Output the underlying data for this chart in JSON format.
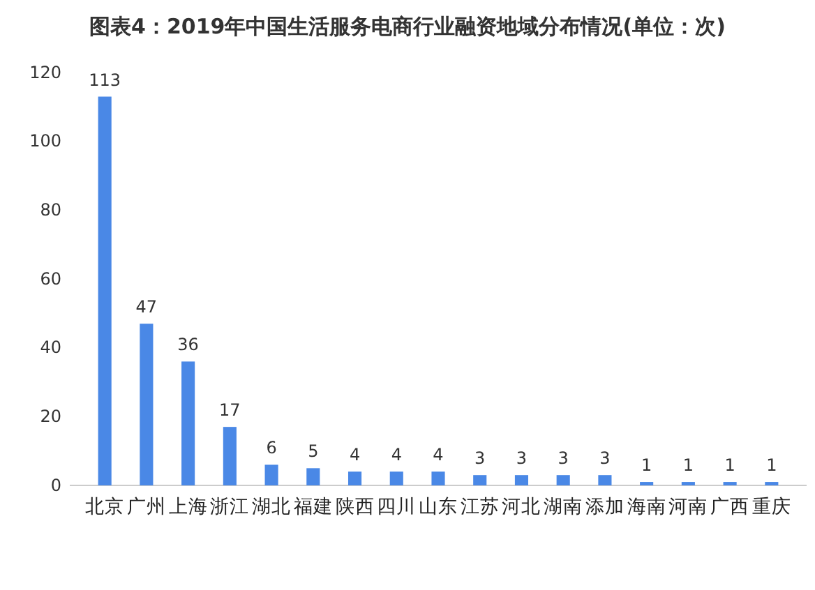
{
  "chart_data": {
    "type": "bar",
    "title": "图表4：2019年中国生活服务电商行业融资地域分布情况(单位：次)",
    "categories": [
      "北京",
      "广州",
      "上海",
      "浙江",
      "湖北",
      "福建",
      "陕西",
      "四川",
      "山东",
      "江苏",
      "河北",
      "湖南",
      "添加",
      "海南",
      "河南",
      "广西",
      "重庆"
    ],
    "values": [
      113,
      47,
      36,
      17,
      6,
      5,
      4,
      4,
      4,
      3,
      3,
      3,
      3,
      1,
      1,
      1,
      1
    ],
    "color": "#4a88e6",
    "ylim": [
      0,
      120
    ],
    "yticks": [
      0,
      20,
      40,
      60,
      80,
      100,
      120
    ],
    "data_labels": true
  }
}
